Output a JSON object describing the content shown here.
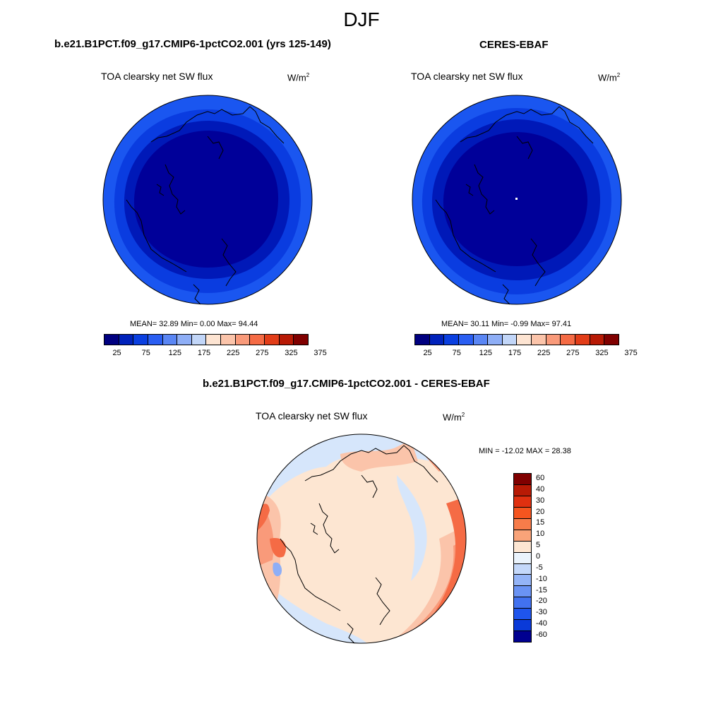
{
  "title": "DJF",
  "panel_model": {
    "case": "b.e21.B1PCT.f09_g17.CMIP6-1pctCO2.001 (yrs 125-149)",
    "variable": "TOA clearsky net SW flux",
    "units_base": "W/m",
    "units_exp": "2",
    "stats": "MEAN=  32.89  Min=   0.00  Max=  94.44"
  },
  "panel_obs": {
    "case": "CERES-EBAF",
    "variable": "TOA clearsky net SW flux",
    "units_base": "W/m",
    "units_exp": "2",
    "stats": "MEAN=  30.11  Min=  -0.99  Max=  97.41"
  },
  "panel_diff": {
    "case": "b.e21.B1PCT.f09_g17.CMIP6-1pctCO2.001 - CERES-EBAF",
    "variable": "TOA clearsky net SW flux",
    "units_base": "W/m",
    "units_exp": "2",
    "stats": "MIN = -12.02 MAX =  28.38"
  },
  "abs_colorbar": {
    "colors": [
      "#000080",
      "#0022bb",
      "#0a3fe0",
      "#2a5ef2",
      "#5a86f4",
      "#8eaef6",
      "#c2d6f8",
      "#fde4d2",
      "#fbc4aa",
      "#f99a7a",
      "#f56b45",
      "#e23d18",
      "#b81a05",
      "#800000"
    ],
    "ticks": [
      "25",
      "75",
      "125",
      "175",
      "225",
      "275",
      "325",
      "375"
    ]
  },
  "diff_colorbar": {
    "colors": [
      "#800000",
      "#b81a05",
      "#e03010",
      "#f5551f",
      "#f77c4a",
      "#f9a379",
      "#fde6d2",
      "#eaf3fc",
      "#c4d8fa",
      "#94b4f7",
      "#6a93f4",
      "#4272f0",
      "#1f55ec",
      "#0a3ad8",
      "#000090"
    ],
    "ticks": [
      "60",
      "40",
      "30",
      "20",
      "15",
      "10",
      "5",
      "0",
      "-5",
      "-10",
      "-15",
      "-20",
      "-30",
      "-40",
      "-60"
    ]
  },
  "map_colors": {
    "deep": "#000099",
    "dark": "#0019b8",
    "mid": "#0a3ce0",
    "light": "#1a56f0",
    "diff_base": "#fde6d2",
    "diff_blue": "#d6e6fb",
    "diff_orange1": "#fbc4aa",
    "diff_orange2": "#f99a7a",
    "diff_orange3": "#f56b45",
    "diff_neg": "#8eaef6"
  }
}
